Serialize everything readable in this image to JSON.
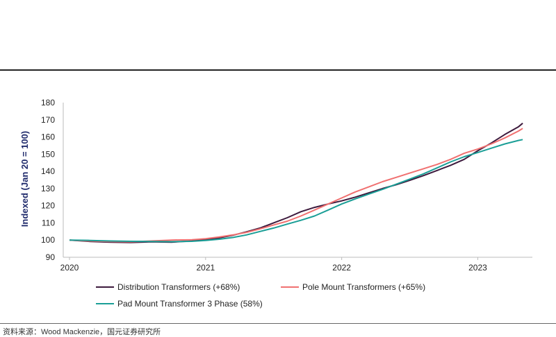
{
  "source_text": "资料来源：Wood Mackenzie，国元证券研究所",
  "chart_data": {
    "type": "line",
    "ylabel": "Indexed (Jan 20 = 100)",
    "xlabel": "",
    "title": "",
    "ylim": [
      90,
      180
    ],
    "yticks": [
      90,
      100,
      110,
      120,
      130,
      140,
      150,
      160,
      170,
      180
    ],
    "xlim": [
      2020.0,
      2023.35
    ],
    "xticks": [
      {
        "value": 2020,
        "label": "2020"
      },
      {
        "value": 2021,
        "label": "2021"
      },
      {
        "value": 2022,
        "label": "2022"
      },
      {
        "value": 2023,
        "label": "2023"
      }
    ],
    "legend_position": "bottom",
    "series": [
      {
        "name": "Distribution Transformers (+68%)",
        "color": "#3d1a3d",
        "points": [
          [
            2020.0,
            100
          ],
          [
            2020.15,
            99.2
          ],
          [
            2020.3,
            98.8
          ],
          [
            2020.45,
            98.6
          ],
          [
            2020.6,
            99.0
          ],
          [
            2020.75,
            98.8
          ],
          [
            2020.9,
            99.5
          ],
          [
            2021.0,
            100.3
          ],
          [
            2021.1,
            101.3
          ],
          [
            2021.2,
            102.8
          ],
          [
            2021.3,
            104.8
          ],
          [
            2021.4,
            107.0
          ],
          [
            2021.5,
            110.0
          ],
          [
            2021.6,
            113.0
          ],
          [
            2021.7,
            116.5
          ],
          [
            2021.8,
            119.0
          ],
          [
            2021.9,
            121.0
          ],
          [
            2022.0,
            122.8
          ],
          [
            2022.1,
            125.0
          ],
          [
            2022.2,
            127.5
          ],
          [
            2022.3,
            130.0
          ],
          [
            2022.4,
            132.2
          ],
          [
            2022.5,
            134.8
          ],
          [
            2022.6,
            137.5
          ],
          [
            2022.7,
            140.5
          ],
          [
            2022.8,
            143.5
          ],
          [
            2022.9,
            147.0
          ],
          [
            2023.0,
            152.0
          ],
          [
            2023.1,
            156.5
          ],
          [
            2023.2,
            161.5
          ],
          [
            2023.3,
            166.0
          ],
          [
            2023.33,
            168.0
          ]
        ]
      },
      {
        "name": "Pole Mount Transformers (+65%)",
        "color": "#f07070",
        "points": [
          [
            2020.0,
            100
          ],
          [
            2020.15,
            99.5
          ],
          [
            2020.3,
            99.2
          ],
          [
            2020.45,
            99.0
          ],
          [
            2020.6,
            99.5
          ],
          [
            2020.75,
            100.0
          ],
          [
            2020.9,
            100.2
          ],
          [
            2021.0,
            100.8
          ],
          [
            2021.1,
            101.8
          ],
          [
            2021.2,
            103.0
          ],
          [
            2021.3,
            104.5
          ],
          [
            2021.4,
            106.5
          ],
          [
            2021.5,
            108.8
          ],
          [
            2021.6,
            111.0
          ],
          [
            2021.7,
            114.0
          ],
          [
            2021.8,
            117.5
          ],
          [
            2021.9,
            121.0
          ],
          [
            2022.0,
            124.5
          ],
          [
            2022.1,
            128.0
          ],
          [
            2022.2,
            131.0
          ],
          [
            2022.3,
            134.0
          ],
          [
            2022.4,
            136.5
          ],
          [
            2022.5,
            139.0
          ],
          [
            2022.6,
            141.5
          ],
          [
            2022.7,
            144.0
          ],
          [
            2022.8,
            147.0
          ],
          [
            2022.9,
            150.5
          ],
          [
            2023.0,
            153.0
          ],
          [
            2023.1,
            156.0
          ],
          [
            2023.2,
            159.5
          ],
          [
            2023.3,
            163.5
          ],
          [
            2023.33,
            165.0
          ]
        ]
      },
      {
        "name": "Pad Mount Transformer 3 Phase (58%)",
        "color": "#1a9e96",
        "points": [
          [
            2020.0,
            100
          ],
          [
            2020.15,
            99.8
          ],
          [
            2020.3,
            99.5
          ],
          [
            2020.45,
            99.3
          ],
          [
            2020.6,
            99.2
          ],
          [
            2020.75,
            99.1
          ],
          [
            2020.9,
            99.3
          ],
          [
            2021.0,
            99.8
          ],
          [
            2021.1,
            100.5
          ],
          [
            2021.2,
            101.5
          ],
          [
            2021.3,
            103.0
          ],
          [
            2021.4,
            105.0
          ],
          [
            2021.5,
            107.0
          ],
          [
            2021.6,
            109.3
          ],
          [
            2021.7,
            111.5
          ],
          [
            2021.8,
            114.0
          ],
          [
            2021.9,
            117.5
          ],
          [
            2022.0,
            121.0
          ],
          [
            2022.1,
            124.0
          ],
          [
            2022.2,
            126.8
          ],
          [
            2022.3,
            129.5
          ],
          [
            2022.4,
            132.5
          ],
          [
            2022.5,
            135.5
          ],
          [
            2022.6,
            138.5
          ],
          [
            2022.7,
            142.0
          ],
          [
            2022.8,
            145.5
          ],
          [
            2022.9,
            148.5
          ],
          [
            2023.0,
            151.0
          ],
          [
            2023.1,
            153.5
          ],
          [
            2023.2,
            156.0
          ],
          [
            2023.3,
            158.0
          ],
          [
            2023.33,
            158.5
          ]
        ]
      }
    ]
  }
}
